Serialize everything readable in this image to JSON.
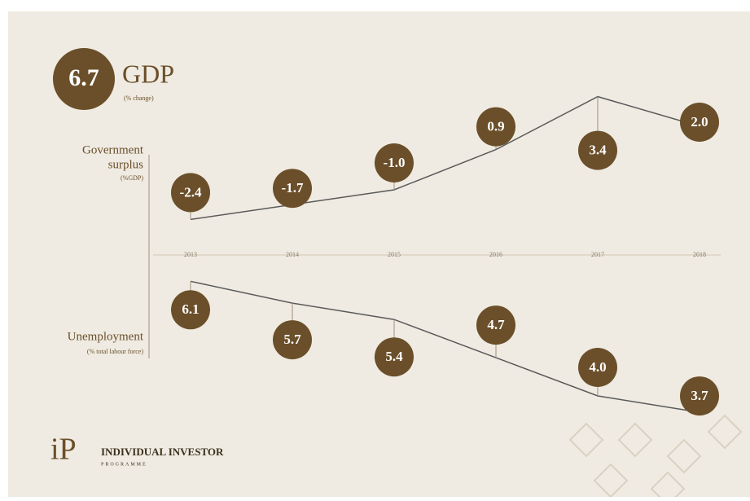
{
  "chart_data": {
    "type": "line",
    "headline_value": 6.7,
    "title": "GDP",
    "subtitle": "(% change)",
    "categories": [
      "2013",
      "2014",
      "2015",
      "2016",
      "2017",
      "2018"
    ],
    "series": [
      {
        "name": "Government surplus",
        "unit_label": "(%GDP)",
        "color": "#6b4f2a",
        "values": [
          -2.4,
          -1.7,
          -1.0,
          0.9,
          3.4,
          2.0
        ],
        "value_labels": [
          "-2.4",
          "-1.7",
          "-1.0",
          "0.9",
          "3.4",
          "2.0"
        ]
      },
      {
        "name": "Unemployment",
        "unit_label": "(% total labour force)",
        "color": "#6b4f2a",
        "values": [
          6.1,
          5.7,
          5.4,
          4.7,
          4.0,
          3.7
        ],
        "value_labels": [
          "6.1",
          "5.7",
          "5.4",
          "4.7",
          "4.0",
          "3.7"
        ]
      }
    ],
    "logo": {
      "mark": "iP",
      "name": "INDIVIDUAL INVESTOR",
      "tagline": "PROGRAMME"
    }
  }
}
